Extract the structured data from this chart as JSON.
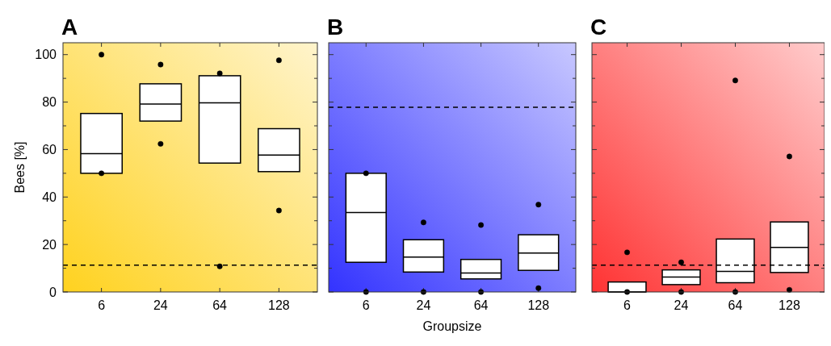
{
  "chart_data": [
    {
      "type": "box",
      "title": "A",
      "ylabel": "Bees [%]",
      "categories": [
        "6",
        "24",
        "64",
        "128"
      ],
      "ylim": [
        0,
        105
      ],
      "yticks": [
        0,
        {
          "value": 10,
          "label": null
        },
        20,
        {
          "value": 30,
          "label": null
        },
        40,
        {
          "value": 50,
          "label": null
        },
        60,
        {
          "value": 70,
          "label": null
        },
        80,
        {
          "value": 90,
          "label": null
        },
        100
      ],
      "boxes": [
        {
          "low": 50,
          "q1": 50,
          "median": 58.3,
          "q3": 75.2,
          "high": 75.2
        },
        {
          "low": 72,
          "q1": 72,
          "median": 79.2,
          "q3": 87.7,
          "high": 87.7
        },
        {
          "low": 54.3,
          "q1": 54.3,
          "median": 79.7,
          "q3": 91.1,
          "high": 91.1
        },
        {
          "low": 50.7,
          "q1": 50.7,
          "median": 57.7,
          "q3": 68.8,
          "high": 68.8
        }
      ],
      "series": [
        {
          "type": "scatter",
          "x": [
            "6",
            "24",
            "64",
            "128",
            "6",
            "24",
            "64",
            "128"
          ],
          "values": [
            100,
            95.8,
            92.1,
            97.6,
            50,
            62.4,
            10.8,
            34.3
          ],
          "color": "#000000"
        }
      ],
      "ref_lines": [
        {
          "axis": "y",
          "value": 11.3,
          "line_style": "dashed",
          "color": "#000000"
        }
      ]
    },
    {
      "type": "box",
      "title": "B",
      "xlabel": "Groupsize",
      "categories": [
        "6",
        "24",
        "64",
        "128"
      ],
      "ylim": [
        0,
        105
      ],
      "yticks": [
        0,
        {
          "value": 10,
          "label": null
        },
        20,
        {
          "value": 30,
          "label": null
        },
        40,
        {
          "value": 50,
          "label": null
        },
        60,
        {
          "value": 70,
          "label": null
        },
        80,
        {
          "value": 90,
          "label": null
        },
        100
      ],
      "tick_labels": "x",
      "boxes": [
        {
          "low": 12.5,
          "q1": 12.5,
          "median": 33.5,
          "q3": 50,
          "high": 50
        },
        {
          "low": 8.4,
          "q1": 8.4,
          "median": 14.7,
          "q3": 22,
          "high": 22
        },
        {
          "low": 5.5,
          "q1": 5.5,
          "median": 8,
          "q3": 13.7,
          "high": 13.7
        },
        {
          "low": 9.1,
          "q1": 9.1,
          "median": 16.4,
          "q3": 24.1,
          "high": 24.1
        }
      ],
      "series": [
        {
          "type": "scatter",
          "x": [
            "6",
            "24",
            "64",
            "128",
            "6",
            "24",
            "64",
            "128"
          ],
          "values": [
            50,
            29.3,
            28.2,
            36.8,
            0,
            0,
            0,
            1.6
          ],
          "color": "#000000"
        }
      ],
      "ref_lines": [
        {
          "axis": "y",
          "value": 77.8,
          "line_style": "dashed",
          "color": "#000000"
        }
      ]
    },
    {
      "type": "box",
      "title": "C",
      "categories": [
        "6",
        "24",
        "64",
        "128"
      ],
      "ylim": [
        0,
        105
      ],
      "yticks": [
        0,
        {
          "value": 10,
          "label": null
        },
        20,
        {
          "value": 30,
          "label": null
        },
        40,
        {
          "value": 50,
          "label": null
        },
        60,
        {
          "value": 70,
          "label": null
        },
        80,
        {
          "value": 90,
          "label": null
        },
        100
      ],
      "tick_labels": "x",
      "boxes": [
        {
          "low": 0,
          "q1": 0,
          "median": 0,
          "q3": 4.2,
          "high": 4.2
        },
        {
          "low": 3.1,
          "q1": 3.1,
          "median": 6.3,
          "q3": 9.3,
          "high": 9.3
        },
        {
          "low": 3.9,
          "q1": 3.9,
          "median": 8.7,
          "q3": 22.3,
          "high": 22.3
        },
        {
          "low": 8.2,
          "q1": 8.2,
          "median": 18.8,
          "q3": 29.5,
          "high": 29.5
        }
      ],
      "series": [
        {
          "type": "scatter",
          "x": [
            "6",
            "24",
            "64",
            "128",
            "6",
            "24",
            "64",
            "128"
          ],
          "values": [
            16.7,
            12.5,
            89.1,
            57.1,
            0,
            0,
            0,
            0.9
          ],
          "color": "#000000"
        }
      ],
      "ref_lines": [
        {
          "axis": "y",
          "value": 11.3,
          "line_style": "dashed",
          "color": "#000000"
        }
      ]
    }
  ]
}
